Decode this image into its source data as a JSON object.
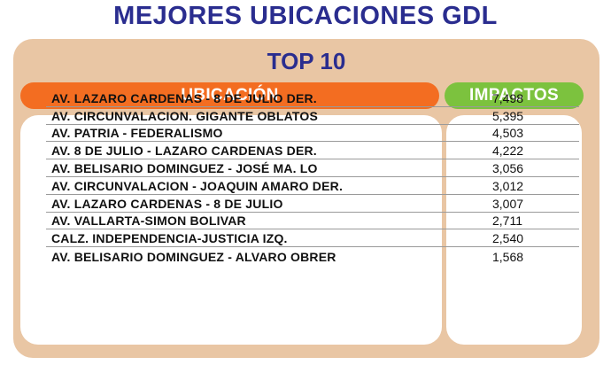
{
  "title": "MEJORES UBICACIONES GDL",
  "subtitle": "TOP 10",
  "headers": {
    "location": "UBICACIÓN",
    "impacts": "IMPACTOS"
  },
  "colors": {
    "title": "#2a2d8f",
    "location_header": "#f36d21",
    "impacts_header": "#7cc23e",
    "card": "#e9c6a4"
  },
  "rows": [
    {
      "location": "AV. LAZARO CARDENAS - 8 DE JULIO DER.",
      "impacts": "7,498"
    },
    {
      "location": "AV. CIRCUNVALACION. GIGANTE OBLATOS",
      "impacts": "5,395"
    },
    {
      "location": "AV. PATRIA - FEDERALISMO",
      "impacts": "4,503"
    },
    {
      "location": "AV. 8 DE JULIO - LAZARO CARDENAS DER.",
      "impacts": "4,222"
    },
    {
      "location": "AV. BELISARIO DOMINGUEZ - JOSÉ MA. LO",
      "impacts": "3,056"
    },
    {
      "location": "AV. CIRCUNVALACION - JOAQUIN AMARO DER.",
      "impacts": "3,012"
    },
    {
      "location": "AV. LAZARO CARDENAS - 8 DE JULIO",
      "impacts": "3,007"
    },
    {
      "location": "AV. VALLARTA-SIMON BOLIVAR",
      "impacts": "2,711"
    },
    {
      "location": "CALZ. INDEPENDENCIA-JUSTICIA IZQ.",
      "impacts": "2,540"
    },
    {
      "location": "AV. BELISARIO DOMINGUEZ - ALVARO OBRER",
      "impacts": "1,568"
    }
  ]
}
